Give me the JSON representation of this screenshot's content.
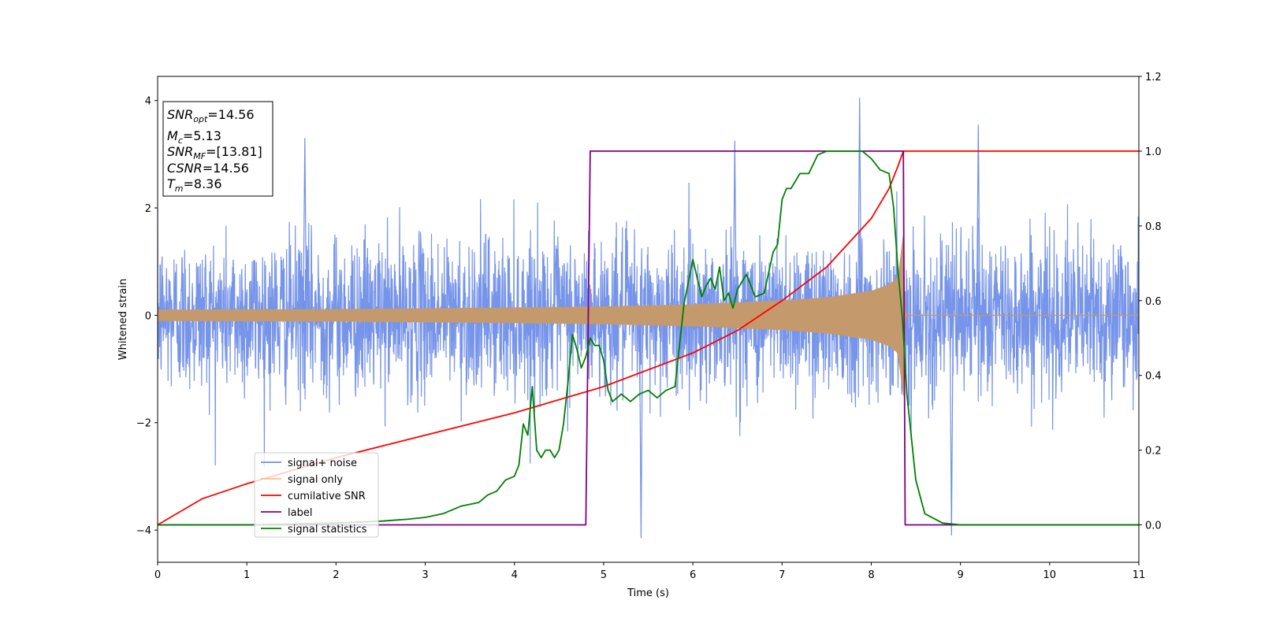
{
  "chart_data": {
    "type": "line",
    "xlabel": "Time (s)",
    "ylabel": "Whitened strain",
    "xlim": [
      0,
      11
    ],
    "ylim_left": [
      -4.6,
      4.45
    ],
    "ylim_right": [
      -0.1,
      1.2
    ],
    "x_ticks": [
      "0",
      "1",
      "2",
      "3",
      "4",
      "5",
      "6",
      "7",
      "8",
      "9",
      "10",
      "11"
    ],
    "y_ticks_left": [
      "−4",
      "−2",
      "0",
      "2",
      "4"
    ],
    "y_ticks_right": [
      "0.0",
      "0.2",
      "0.4",
      "0.6",
      "0.8",
      "1.0",
      "1.2"
    ],
    "grid": false,
    "legend_position": "lower-left",
    "annotation": {
      "snr_opt": {
        "base": "SNR",
        "sub": "opt",
        "value": "=14.56"
      },
      "mc": {
        "base": "M",
        "sub": "c",
        "value": "=5.13"
      },
      "snr_mf": {
        "base": "SNR",
        "sub": "MF",
        "value": "=[13.81]"
      },
      "csnr": {
        "base": "CSNR",
        "value": "=14.56"
      },
      "tm": {
        "base": "T",
        "sub": "m",
        "value": "=8.36"
      }
    },
    "series": [
      {
        "name": "signal+ noise",
        "axis": "left",
        "color": "#6f8ee8",
        "kind": "noise band",
        "x_range": [
          0,
          11
        ],
        "typical_range": [
          -2.0,
          2.2
        ],
        "peaks": [
          {
            "x": 7.87,
            "y": 4.05
          },
          {
            "x": 9.2,
            "y": 3.55
          },
          {
            "x": 1.65,
            "y": 3.3
          },
          {
            "x": 6.47,
            "y": 3.25
          },
          {
            "x": 5.42,
            "y": -4.15
          },
          {
            "x": 8.9,
            "y": -4.1
          }
        ]
      },
      {
        "name": "signal only",
        "axis": "left",
        "color": "#c49a6c",
        "kind": "chirp envelope",
        "x": [
          0,
          2,
          4,
          5,
          6,
          7,
          7.5,
          8,
          8.2,
          8.3,
          8.36,
          8.38,
          11
        ],
        "amplitude": [
          0.1,
          0.11,
          0.14,
          0.16,
          0.2,
          0.27,
          0.33,
          0.45,
          0.57,
          0.7,
          1.5,
          0.0,
          0.0
        ]
      },
      {
        "name": "cumilative SNR",
        "axis": "right",
        "color": "#ff0000",
        "x": [
          0,
          0.5,
          1,
          2,
          3,
          4,
          5,
          6,
          6.5,
          7,
          7.5,
          8,
          8.2,
          8.3,
          8.36,
          8.4,
          11
        ],
        "y": [
          0.0,
          0.07,
          0.11,
          0.18,
          0.24,
          0.3,
          0.37,
          0.46,
          0.52,
          0.6,
          0.69,
          0.82,
          0.9,
          0.96,
          1.0,
          1.0,
          1.0
        ]
      },
      {
        "name": "label",
        "axis": "right",
        "color": "#800080",
        "x": [
          0,
          4.8,
          4.85,
          8.36,
          8.38,
          11
        ],
        "y": [
          0,
          0,
          1,
          1,
          0,
          0
        ]
      },
      {
        "name": "signal statistics",
        "axis": "right",
        "color": "#008000",
        "x": [
          0,
          1,
          2,
          2.5,
          2.8,
          3.0,
          3.2,
          3.4,
          3.6,
          3.7,
          3.8,
          3.9,
          4.0,
          4.05,
          4.1,
          4.15,
          4.2,
          4.25,
          4.3,
          4.35,
          4.4,
          4.45,
          4.5,
          4.55,
          4.6,
          4.65,
          4.7,
          4.75,
          4.8,
          4.85,
          4.9,
          4.95,
          5.0,
          5.05,
          5.1,
          5.2,
          5.3,
          5.4,
          5.5,
          5.6,
          5.7,
          5.8,
          5.9,
          6.0,
          6.1,
          6.15,
          6.2,
          6.25,
          6.3,
          6.35,
          6.4,
          6.45,
          6.5,
          6.6,
          6.7,
          6.8,
          6.9,
          6.95,
          7.0,
          7.05,
          7.1,
          7.15,
          7.2,
          7.3,
          7.4,
          7.5,
          7.6,
          7.7,
          7.8,
          7.9,
          8.0,
          8.1,
          8.2,
          8.25,
          8.3,
          8.35,
          8.4,
          8.5,
          8.6,
          8.8,
          9.0,
          11
        ],
        "y": [
          0.0,
          0.0,
          0.005,
          0.01,
          0.015,
          0.02,
          0.03,
          0.05,
          0.06,
          0.08,
          0.09,
          0.12,
          0.13,
          0.16,
          0.27,
          0.24,
          0.37,
          0.2,
          0.18,
          0.2,
          0.2,
          0.18,
          0.2,
          0.27,
          0.38,
          0.51,
          0.47,
          0.42,
          0.45,
          0.5,
          0.48,
          0.48,
          0.44,
          0.36,
          0.33,
          0.35,
          0.33,
          0.35,
          0.36,
          0.34,
          0.36,
          0.37,
          0.59,
          0.71,
          0.61,
          0.64,
          0.66,
          0.63,
          0.69,
          0.6,
          0.62,
          0.58,
          0.63,
          0.67,
          0.61,
          0.62,
          0.73,
          0.75,
          0.87,
          0.9,
          0.9,
          0.92,
          0.94,
          0.94,
          0.99,
          1.0,
          1.0,
          1.0,
          1.0,
          1.0,
          0.98,
          0.95,
          0.94,
          0.85,
          0.68,
          0.55,
          0.35,
          0.12,
          0.03,
          0.005,
          0.0,
          0.0
        ]
      }
    ]
  }
}
